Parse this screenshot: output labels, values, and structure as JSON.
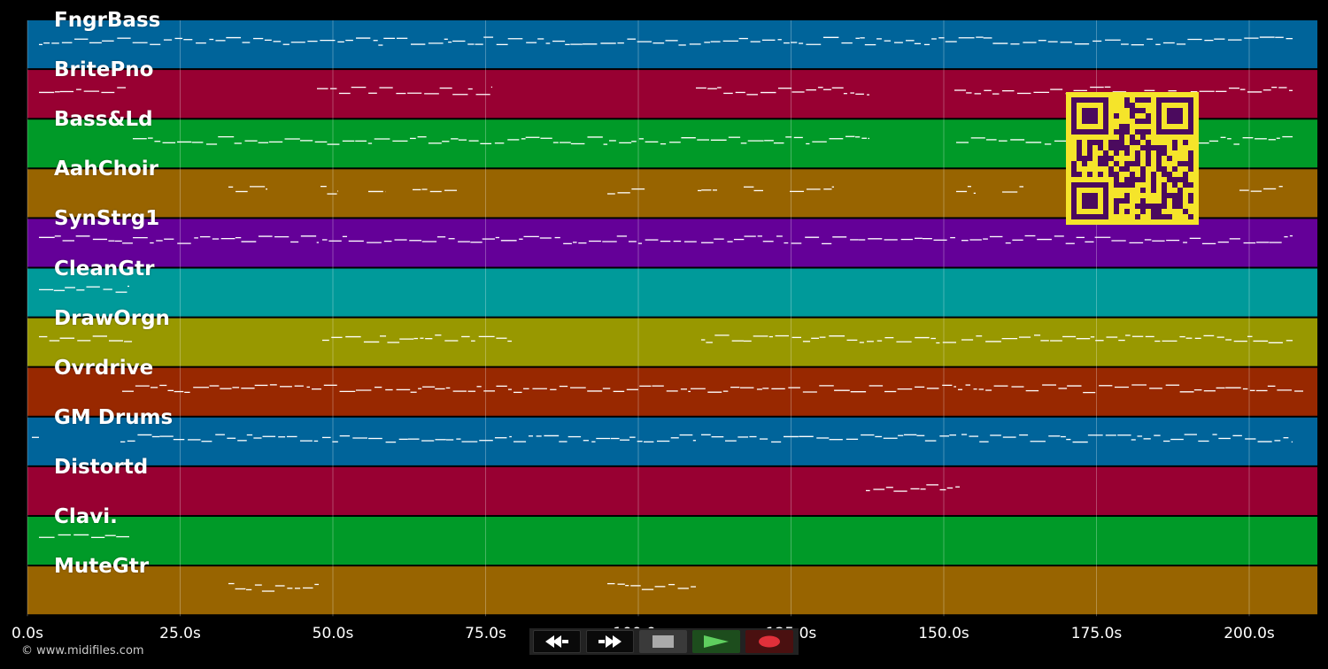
{
  "tracks": [
    {
      "name": "FngrBass",
      "color": "#00649a"
    },
    {
      "name": "BritePno",
      "color": "#980032"
    },
    {
      "name": "Bass&Ld",
      "color": "#009a28"
    },
    {
      "name": "AahChoir",
      "color": "#986400"
    },
    {
      "name": "SynStrg1",
      "color": "#640098"
    },
    {
      "name": "CleanGtr",
      "color": "#009a9a"
    },
    {
      "name": "DrawOrgn",
      "color": "#989800"
    },
    {
      "name": "Ovrdrive",
      "color": "#982800"
    },
    {
      "name": "GM Drums",
      "color": "#00649a"
    },
    {
      "name": "Distortd",
      "color": "#980032"
    },
    {
      "name": "Clavi.",
      "color": "#009a28"
    },
    {
      "name": "MuteGtr",
      "color": "#986400"
    }
  ],
  "axis": {
    "ticks": [
      "0.0s",
      "25.0s",
      "50.0s",
      "75.0s",
      "100.0s",
      "125.0s",
      "150.0s",
      "175.0s",
      "200.0s"
    ]
  },
  "copyright": "© www.midifiles.com",
  "transport": {
    "buttons": [
      "rewind",
      "fast-forward",
      "stop",
      "play",
      "record"
    ]
  },
  "colors": {
    "qr_fg": "#4b0a5e",
    "qr_bg": "#f5e42a",
    "grid": "#ffffff",
    "notes": "#ffffff"
  }
}
